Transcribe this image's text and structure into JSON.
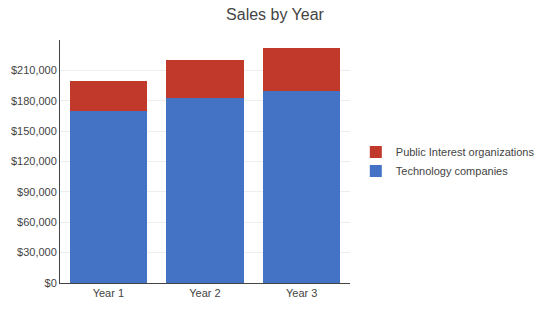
{
  "chart_data": {
    "type": "bar",
    "title": "Sales by Year",
    "categories": [
      "Year 1",
      "Year 2",
      "Year 3"
    ],
    "series": [
      {
        "name": "Technology companies",
        "color": "#4472C4",
        "values": [
          170000,
          183000,
          190000
        ]
      },
      {
        "name": "Public Interest organizations",
        "color": "#C0392B",
        "values": [
          30000,
          37000,
          42000
        ]
      }
    ],
    "stacked": true,
    "ylim": [
      0,
      240000
    ],
    "yticks": [
      {
        "value": 0,
        "label": "$0"
      },
      {
        "value": 30000,
        "label": "$30,000"
      },
      {
        "value": 60000,
        "label": "$60,000"
      },
      {
        "value": 90000,
        "label": "$90,000"
      },
      {
        "value": 120000,
        "label": "$120,000"
      },
      {
        "value": 150000,
        "label": "$150,000"
      },
      {
        "value": 180000,
        "label": "$180,000"
      },
      {
        "value": 210000,
        "label": "$210,000"
      }
    ],
    "grid": true,
    "legend": "right"
  }
}
